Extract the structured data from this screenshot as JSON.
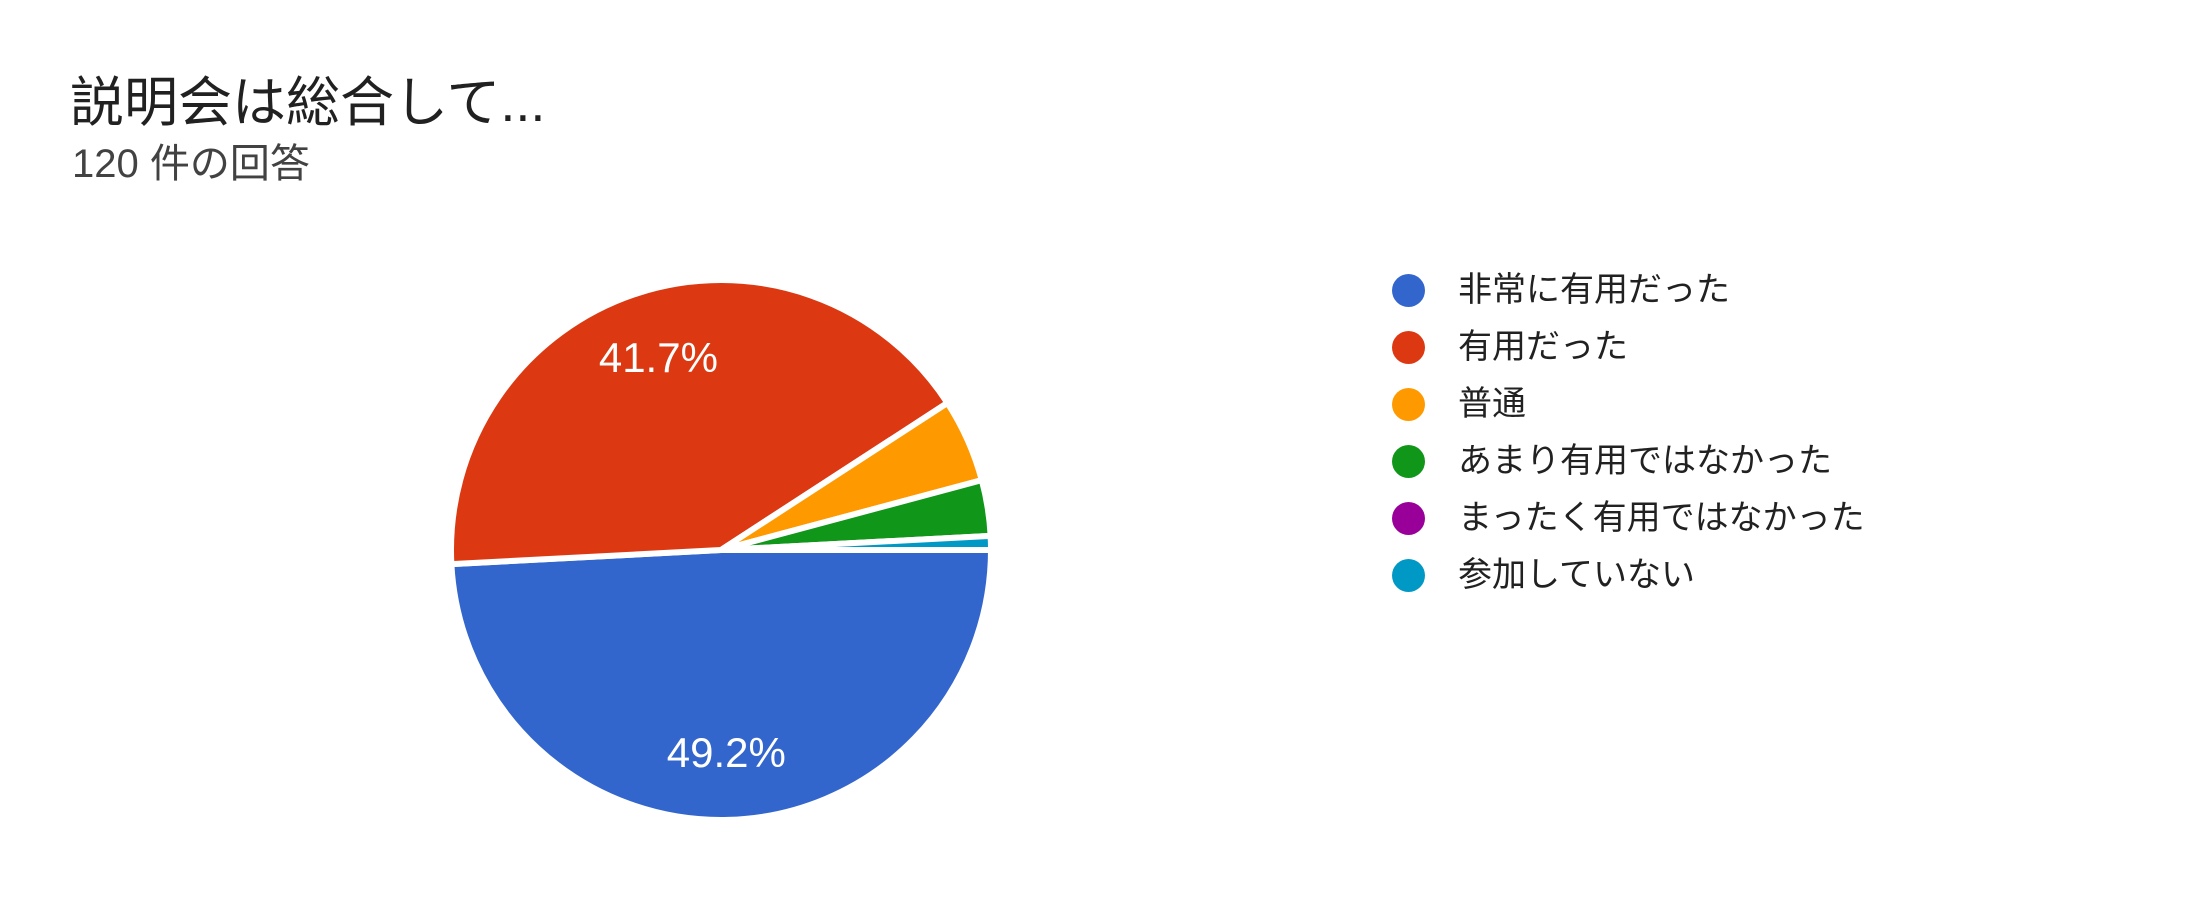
{
  "header": {
    "title": "説明会は総合して...",
    "response_count": "120 件の回答"
  },
  "chart_data": {
    "type": "pie",
    "title": "説明会は総合して...",
    "subtitle": "120 件の回答",
    "total_responses": 120,
    "start_angle_deg": 0,
    "direction": "clockwise",
    "legend_position": "right",
    "label_text_color": "#ffffff",
    "slices": [
      {
        "key": "very-useful",
        "label": "非常に有用だった",
        "value": 59,
        "percent": 49.2,
        "percent_label": "49.2%",
        "color": "#3366CC"
      },
      {
        "key": "useful",
        "label": "有用だった",
        "value": 50,
        "percent": 41.7,
        "percent_label": "41.7%",
        "color": "#DC3912"
      },
      {
        "key": "neutral",
        "label": "普通",
        "value": 6,
        "percent": 5.0,
        "percent_label": "",
        "color": "#FF9900"
      },
      {
        "key": "not-very-useful",
        "label": "あまり有用ではなかった",
        "value": 4,
        "percent": 3.3,
        "percent_label": "",
        "color": "#109618"
      },
      {
        "key": "not-at-all-useful",
        "label": "まったく有用ではなかった",
        "value": 0,
        "percent": 0.0,
        "percent_label": "",
        "color": "#990099"
      },
      {
        "key": "did-not-attend",
        "label": "参加していない",
        "value": 1,
        "percent": 0.8,
        "percent_label": "",
        "color": "#0099C6"
      }
    ]
  },
  "style": {
    "background": "#ffffff",
    "title_color": "#212121",
    "subtitle_color": "#424242",
    "legend_text_color": "#212121"
  }
}
